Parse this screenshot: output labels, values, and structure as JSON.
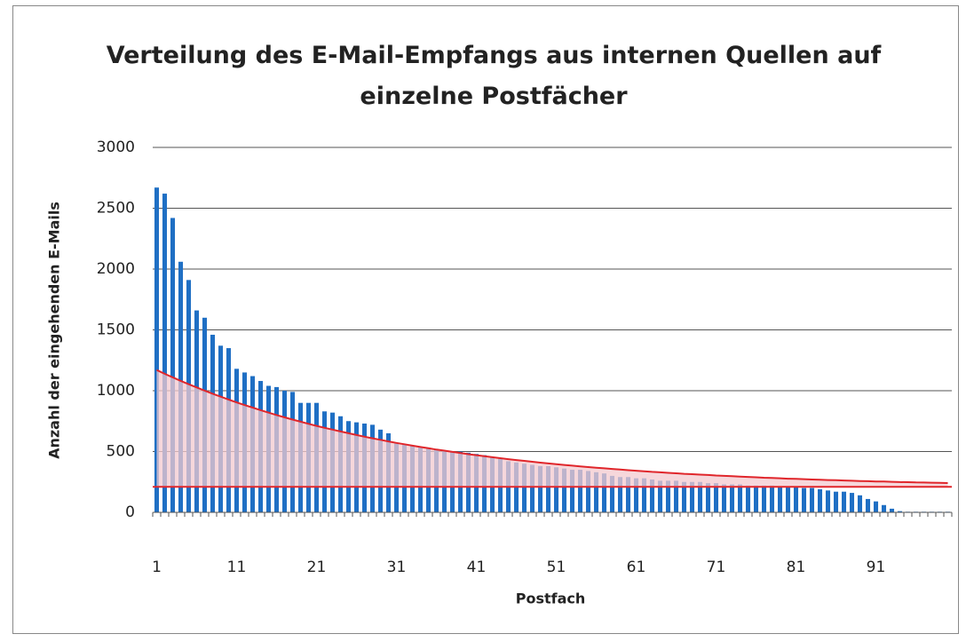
{
  "chart_data": {
    "type": "bar",
    "title": "Verteilung des E-Mail-Empfangs aus internen Quellen auf einzelne Postfächer",
    "x_label": "Postfach",
    "y_label": "Anzahl der eingehenden E-Mails",
    "categories": [
      "1",
      null,
      null,
      null,
      null,
      null,
      null,
      null,
      null,
      null,
      "11",
      null,
      null,
      null,
      null,
      null,
      null,
      null,
      null,
      null,
      "21",
      null,
      null,
      null,
      null,
      null,
      null,
      null,
      null,
      null,
      "31",
      null,
      null,
      null,
      null,
      null,
      null,
      null,
      null,
      null,
      "41",
      null,
      null,
      null,
      null,
      null,
      null,
      null,
      null,
      null,
      "51",
      null,
      null,
      null,
      null,
      null,
      null,
      null,
      null,
      null,
      "61",
      null,
      null,
      null,
      null,
      null,
      null,
      null,
      null,
      null,
      "71",
      null,
      null,
      null,
      null,
      null,
      null,
      null,
      null,
      null,
      "81",
      null,
      null,
      null,
      null,
      null,
      null,
      null,
      null,
      null,
      "91",
      null,
      null,
      null,
      null,
      null,
      null,
      null,
      null,
      null
    ],
    "series": [
      {
        "type": "bar",
        "color": "#1f6fc4",
        "values": [
          2670,
          2620,
          2420,
          2060,
          1910,
          1660,
          1600,
          1460,
          1370,
          1350,
          1180,
          1150,
          1120,
          1080,
          1040,
          1030,
          1000,
          990,
          900,
          900,
          900,
          830,
          820,
          790,
          750,
          740,
          730,
          720,
          680,
          650,
          570,
          560,
          550,
          540,
          530,
          520,
          510,
          500,
          500,
          490,
          480,
          470,
          450,
          440,
          420,
          410,
          400,
          390,
          380,
          380,
          370,
          360,
          350,
          350,
          340,
          330,
          320,
          300,
          290,
          290,
          280,
          280,
          270,
          260,
          260,
          260,
          250,
          250,
          250,
          240,
          240,
          230,
          230,
          230,
          220,
          220,
          220,
          220,
          210,
          210,
          210,
          200,
          200,
          190,
          180,
          170,
          170,
          160,
          140,
          110,
          90,
          60,
          30,
          10,
          5,
          5,
          5,
          5,
          5,
          5
        ]
      },
      {
        "type": "line",
        "color": "#e0262b",
        "fill_color": "#f3c9cf",
        "values": [
          1170,
          1139,
          1110,
          1081,
          1053,
          1027,
          1001,
          975,
          951,
          927,
          904,
          882,
          861,
          840,
          820,
          800,
          781,
          763,
          745,
          728,
          711,
          695,
          680,
          665,
          650,
          636,
          622,
          609,
          596,
          583,
          571,
          560,
          548,
          537,
          527,
          516,
          507,
          497,
          488,
          478,
          470,
          461,
          453,
          445,
          437,
          430,
          423,
          416,
          409,
          402,
          396,
          390,
          384,
          378,
          372,
          367,
          362,
          357,
          352,
          347,
          342,
          338,
          333,
          329,
          325,
          321,
          317,
          314,
          310,
          307,
          303,
          300,
          297,
          294,
          291,
          288,
          285,
          283,
          280,
          277,
          275,
          273,
          270,
          268,
          266,
          264,
          262,
          260,
          258,
          256,
          254,
          253,
          251,
          249,
          248,
          246,
          245,
          244,
          242,
          241
        ]
      }
    ],
    "reference_line": {
      "value": 210,
      "color": "#e0262b"
    },
    "ylim": [
      0,
      3000
    ],
    "yticks": [
      0,
      500,
      1000,
      1500,
      2000,
      2500,
      3000
    ],
    "grid": true,
    "grid_color": "#555555"
  }
}
